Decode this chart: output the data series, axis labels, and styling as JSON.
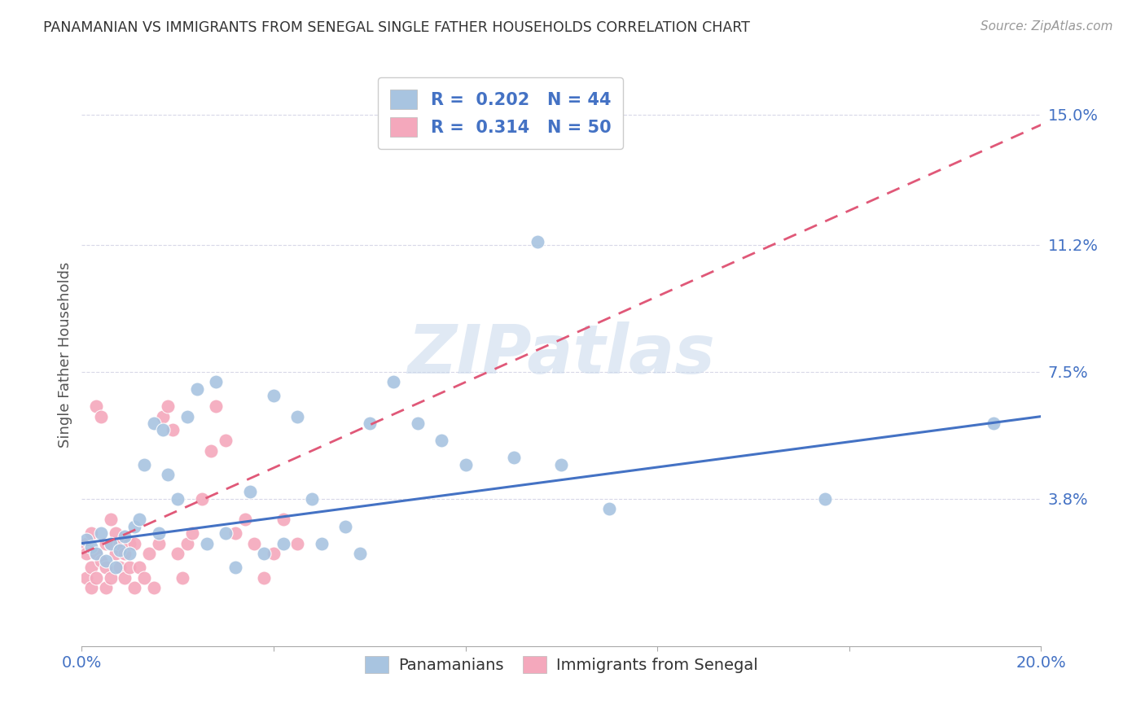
{
  "title": "PANAMANIAN VS IMMIGRANTS FROM SENEGAL SINGLE FATHER HOUSEHOLDS CORRELATION CHART",
  "source": "Source: ZipAtlas.com",
  "ylabel": "Single Father Households",
  "xlim": [
    0.0,
    0.2
  ],
  "ylim": [
    -0.005,
    0.165
  ],
  "xticks": [
    0.0,
    0.04,
    0.08,
    0.12,
    0.16,
    0.2
  ],
  "xticklabels": [
    "0.0%",
    "",
    "",
    "",
    "",
    "20.0%"
  ],
  "ytick_positions": [
    0.038,
    0.075,
    0.112,
    0.15
  ],
  "ytick_labels": [
    "3.8%",
    "7.5%",
    "11.2%",
    "15.0%"
  ],
  "background_color": "#ffffff",
  "grid_color": "#d8d8e8",
  "text_color_blue": "#4472c4",
  "panamanian_color": "#a8c4e0",
  "senegal_color": "#f4a8bc",
  "panamanian_line_color": "#4472c4",
  "senegal_line_color": "#e05878",
  "R_panamanian": 0.202,
  "N_panamanian": 44,
  "R_senegal": 0.314,
  "N_senegal": 50,
  "panamanian_scatter_x": [
    0.001,
    0.002,
    0.003,
    0.004,
    0.005,
    0.006,
    0.007,
    0.008,
    0.009,
    0.01,
    0.011,
    0.012,
    0.013,
    0.015,
    0.016,
    0.017,
    0.018,
    0.02,
    0.022,
    0.024,
    0.026,
    0.028,
    0.03,
    0.032,
    0.035,
    0.038,
    0.04,
    0.042,
    0.045,
    0.048,
    0.05,
    0.055,
    0.058,
    0.06,
    0.065,
    0.07,
    0.075,
    0.08,
    0.09,
    0.095,
    0.1,
    0.11,
    0.155,
    0.19
  ],
  "panamanian_scatter_y": [
    0.026,
    0.024,
    0.022,
    0.028,
    0.02,
    0.025,
    0.018,
    0.023,
    0.027,
    0.022,
    0.03,
    0.032,
    0.048,
    0.06,
    0.028,
    0.058,
    0.045,
    0.038,
    0.062,
    0.07,
    0.025,
    0.072,
    0.028,
    0.018,
    0.04,
    0.022,
    0.068,
    0.025,
    0.062,
    0.038,
    0.025,
    0.03,
    0.022,
    0.06,
    0.072,
    0.06,
    0.055,
    0.048,
    0.05,
    0.113,
    0.048,
    0.035,
    0.038,
    0.06
  ],
  "senegal_scatter_x": [
    0.001,
    0.001,
    0.001,
    0.002,
    0.002,
    0.002,
    0.003,
    0.003,
    0.003,
    0.004,
    0.004,
    0.005,
    0.005,
    0.005,
    0.006,
    0.006,
    0.006,
    0.007,
    0.007,
    0.008,
    0.008,
    0.009,
    0.009,
    0.01,
    0.01,
    0.011,
    0.011,
    0.012,
    0.013,
    0.014,
    0.015,
    0.016,
    0.017,
    0.018,
    0.019,
    0.02,
    0.021,
    0.022,
    0.023,
    0.025,
    0.027,
    0.028,
    0.03,
    0.032,
    0.034,
    0.036,
    0.038,
    0.04,
    0.042,
    0.045
  ],
  "senegal_scatter_y": [
    0.025,
    0.022,
    0.015,
    0.028,
    0.018,
    0.012,
    0.065,
    0.022,
    0.015,
    0.062,
    0.02,
    0.025,
    0.018,
    0.012,
    0.025,
    0.032,
    0.015,
    0.022,
    0.028,
    0.025,
    0.018,
    0.015,
    0.022,
    0.025,
    0.018,
    0.012,
    0.025,
    0.018,
    0.015,
    0.022,
    0.012,
    0.025,
    0.062,
    0.065,
    0.058,
    0.022,
    0.015,
    0.025,
    0.028,
    0.038,
    0.052,
    0.065,
    0.055,
    0.028,
    0.032,
    0.025,
    0.015,
    0.022,
    0.032,
    0.025
  ],
  "watermark": "ZIPatlas",
  "bottom_legend_items": [
    "Panamanians",
    "Immigrants from Senegal"
  ],
  "pan_line_x": [
    0.0,
    0.2
  ],
  "pan_line_y": [
    0.025,
    0.062
  ],
  "sen_line_x": [
    0.0,
    0.048
  ],
  "sen_line_y": [
    0.022,
    0.052
  ]
}
